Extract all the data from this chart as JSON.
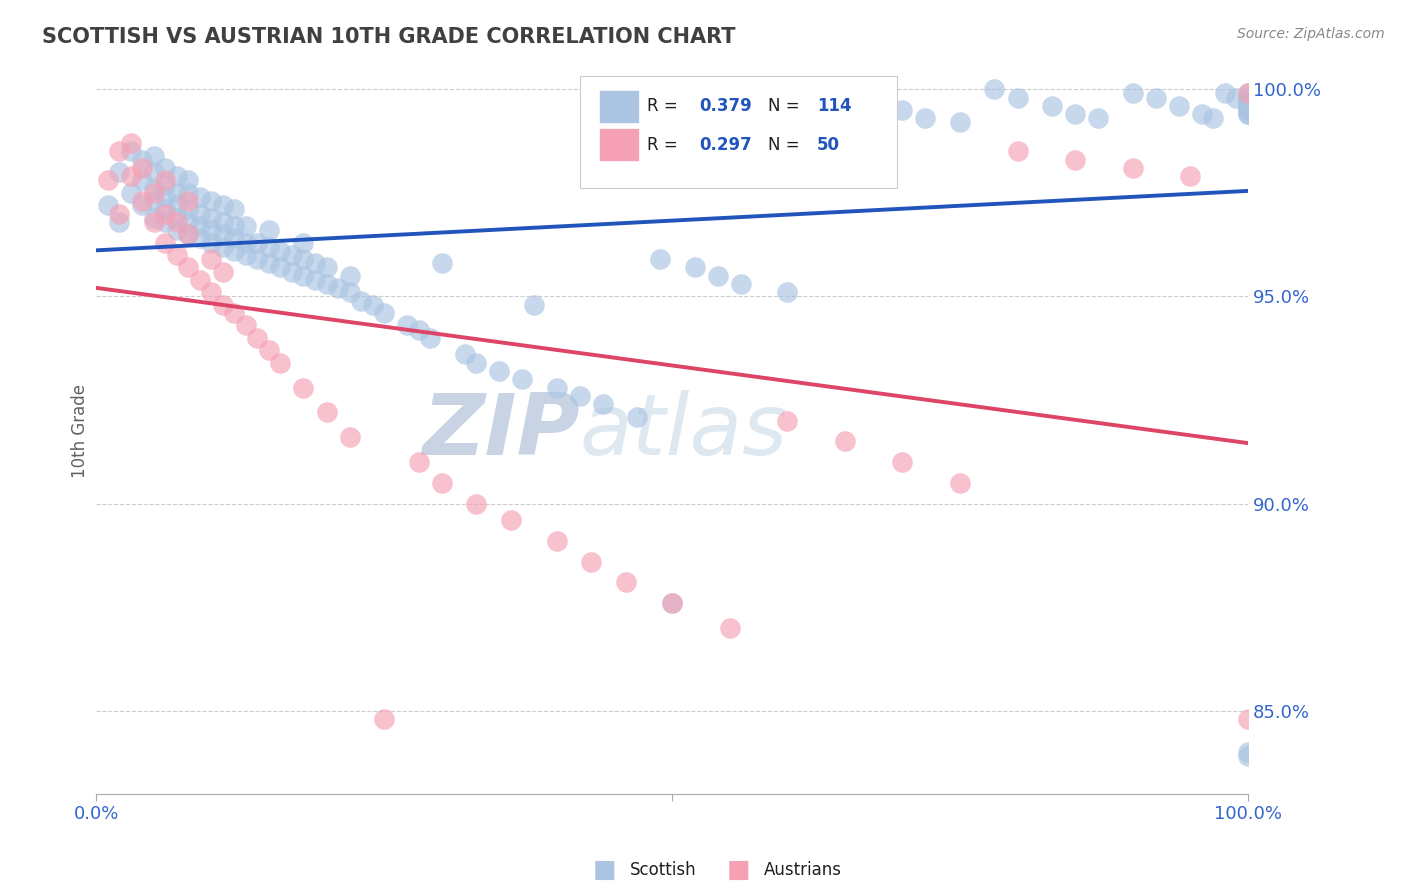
{
  "title": "SCOTTISH VS AUSTRIAN 10TH GRADE CORRELATION CHART",
  "source_text": "Source: ZipAtlas.com",
  "ylabel": "10th Grade",
  "xlim": [
    0.0,
    1.0
  ],
  "ylim": [
    0.83,
    1.005
  ],
  "yticks": [
    0.85,
    0.9,
    0.95,
    1.0
  ],
  "ytick_labels": [
    "85.0%",
    "90.0%",
    "95.0%",
    "100.0%"
  ],
  "xticks": [
    0.0,
    0.5,
    1.0
  ],
  "xtick_labels": [
    "0.0%",
    "",
    "100.0%"
  ],
  "scottish_R": 0.379,
  "scottish_N": 114,
  "austrian_R": 0.297,
  "austrian_N": 50,
  "scottish_color": "#aac4e2",
  "austrian_color": "#f5a0b5",
  "scottish_line_color": "#2255bb",
  "austrian_line_color": "#dd4466",
  "background_color": "#ffffff",
  "grid_color": "#cccccc",
  "title_color": "#404040",
  "axis_label_color": "#606060",
  "tick_label_color": "#3366cc",
  "watermark_color": "#ccd8e8",
  "legend_blue": "#2255bb",
  "legend_black": "#202020",
  "sc_x": [
    0.01,
    0.02,
    0.02,
    0.03,
    0.03,
    0.04,
    0.04,
    0.04,
    0.05,
    0.05,
    0.05,
    0.05,
    0.05,
    0.06,
    0.06,
    0.06,
    0.06,
    0.06,
    0.07,
    0.07,
    0.07,
    0.07,
    0.07,
    0.08,
    0.08,
    0.08,
    0.08,
    0.08,
    0.09,
    0.09,
    0.09,
    0.09,
    0.1,
    0.1,
    0.1,
    0.1,
    0.11,
    0.11,
    0.11,
    0.11,
    0.12,
    0.12,
    0.12,
    0.12,
    0.13,
    0.13,
    0.13,
    0.14,
    0.14,
    0.15,
    0.15,
    0.15,
    0.16,
    0.16,
    0.17,
    0.17,
    0.18,
    0.18,
    0.18,
    0.19,
    0.19,
    0.2,
    0.2,
    0.21,
    0.22,
    0.22,
    0.23,
    0.24,
    0.25,
    0.27,
    0.28,
    0.29,
    0.3,
    0.32,
    0.33,
    0.35,
    0.37,
    0.38,
    0.4,
    0.42,
    0.44,
    0.47,
    0.49,
    0.5,
    0.52,
    0.54,
    0.56,
    0.6,
    0.65,
    0.7,
    0.72,
    0.75,
    0.78,
    0.8,
    0.83,
    0.85,
    0.87,
    0.9,
    0.92,
    0.94,
    0.96,
    0.97,
    0.98,
    0.99,
    1.0,
    1.0,
    1.0,
    1.0,
    1.0,
    1.0,
    1.0,
    1.0,
    1.0,
    1.0,
    1.0,
    1.0
  ],
  "sc_y": [
    0.972,
    0.98,
    0.968,
    0.975,
    0.985,
    0.972,
    0.978,
    0.983,
    0.969,
    0.973,
    0.976,
    0.98,
    0.984,
    0.968,
    0.971,
    0.974,
    0.977,
    0.981,
    0.966,
    0.969,
    0.972,
    0.975,
    0.979,
    0.965,
    0.968,
    0.971,
    0.975,
    0.978,
    0.964,
    0.967,
    0.97,
    0.974,
    0.963,
    0.966,
    0.969,
    0.973,
    0.962,
    0.965,
    0.968,
    0.972,
    0.961,
    0.964,
    0.967,
    0.971,
    0.96,
    0.963,
    0.967,
    0.959,
    0.963,
    0.958,
    0.962,
    0.966,
    0.957,
    0.961,
    0.956,
    0.96,
    0.955,
    0.959,
    0.963,
    0.954,
    0.958,
    0.953,
    0.957,
    0.952,
    0.951,
    0.955,
    0.949,
    0.948,
    0.946,
    0.943,
    0.942,
    0.94,
    0.958,
    0.936,
    0.934,
    0.932,
    0.93,
    0.948,
    0.928,
    0.926,
    0.924,
    0.921,
    0.959,
    0.876,
    0.957,
    0.955,
    0.953,
    0.951,
    0.997,
    0.995,
    0.993,
    0.992,
    1.0,
    0.998,
    0.996,
    0.994,
    0.993,
    0.999,
    0.998,
    0.996,
    0.994,
    0.993,
    0.999,
    0.998,
    0.997,
    0.996,
    0.995,
    0.994,
    0.84,
    0.839,
    0.999,
    0.998,
    0.997,
    0.996,
    0.995,
    0.994
  ],
  "au_x": [
    0.01,
    0.02,
    0.02,
    0.03,
    0.03,
    0.04,
    0.04,
    0.05,
    0.05,
    0.06,
    0.06,
    0.06,
    0.07,
    0.07,
    0.08,
    0.08,
    0.08,
    0.09,
    0.1,
    0.1,
    0.11,
    0.11,
    0.12,
    0.13,
    0.14,
    0.15,
    0.16,
    0.18,
    0.2,
    0.22,
    0.25,
    0.28,
    0.3,
    0.33,
    0.36,
    0.4,
    0.43,
    0.46,
    0.5,
    0.55,
    0.6,
    0.65,
    0.7,
    0.75,
    0.8,
    0.85,
    0.9,
    0.95,
    1.0,
    1.0
  ],
  "au_y": [
    0.978,
    0.985,
    0.97,
    0.979,
    0.987,
    0.973,
    0.981,
    0.968,
    0.975,
    0.963,
    0.97,
    0.978,
    0.96,
    0.968,
    0.957,
    0.965,
    0.973,
    0.954,
    0.951,
    0.959,
    0.948,
    0.956,
    0.946,
    0.943,
    0.94,
    0.937,
    0.934,
    0.928,
    0.922,
    0.916,
    0.848,
    0.91,
    0.905,
    0.9,
    0.896,
    0.891,
    0.886,
    0.881,
    0.876,
    0.87,
    0.92,
    0.915,
    0.91,
    0.905,
    0.985,
    0.983,
    0.981,
    0.979,
    0.999,
    0.848
  ]
}
